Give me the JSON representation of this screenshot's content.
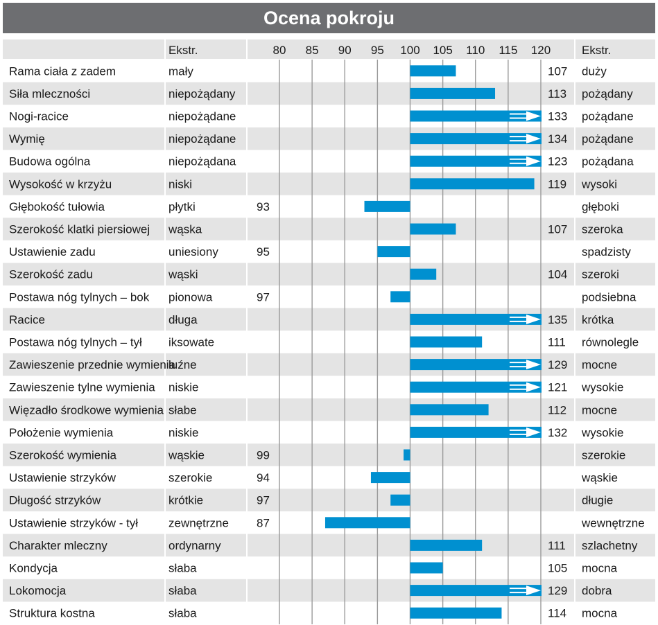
{
  "title": "Ocena pokroju",
  "header": {
    "ekstr_left": "Ekstr.",
    "ekstr_right": "Ekstr."
  },
  "colors": {
    "bar": "#0090d0",
    "header_bg": "#6d6e71",
    "row_alt": "#e4e4e4",
    "grid": "#9a9a9a"
  },
  "chart_data": {
    "type": "bar",
    "orientation": "horizontal",
    "baseline": 100,
    "xlim": [
      80,
      120
    ],
    "ticks": [
      80,
      85,
      90,
      95,
      100,
      105,
      110,
      115,
      120
    ],
    "rows": [
      {
        "trait": "Rama ciała z zadem",
        "left": "mały",
        "right": "duży",
        "value": 107
      },
      {
        "trait": "Siła mleczności",
        "left": "niepożądany",
        "right": "pożądany",
        "value": 113
      },
      {
        "trait": "Nogi-racice",
        "left": "niepożądane",
        "right": "pożądane",
        "value": 133
      },
      {
        "trait": "Wymię",
        "left": "niepożądane",
        "right": "pożądane",
        "value": 134
      },
      {
        "trait": "Budowa ogólna",
        "left": "niepożądana",
        "right": "pożądana",
        "value": 123
      },
      {
        "trait": "Wysokość w krzyżu",
        "left": "niski",
        "right": "wysoki",
        "value": 119
      },
      {
        "trait": "Głębokość tułowia",
        "left": "płytki",
        "right": "głęboki",
        "value": 93
      },
      {
        "trait": "Szerokość klatki piersiowej",
        "left": "wąska",
        "right": "szeroka",
        "value": 107
      },
      {
        "trait": "Ustawienie zadu",
        "left": "uniesiony",
        "right": "spadzisty",
        "value": 95
      },
      {
        "trait": "Szerokość zadu",
        "left": "wąski",
        "right": "szeroki",
        "value": 104
      },
      {
        "trait": "Postawa nóg tylnych –  bok",
        "left": "pionowa",
        "right": "podsiebna",
        "value": 97
      },
      {
        "trait": "Racice",
        "left": "długa",
        "right": "krótka",
        "value": 135
      },
      {
        "trait": "Postawa nóg tylnych –  tył",
        "left": "iksowate",
        "right": "równolegle",
        "value": 111
      },
      {
        "trait": "Zawieszenie przednie wymienia",
        "left": "luźne",
        "right": "mocne",
        "value": 129
      },
      {
        "trait": "Zawieszenie tylne wymienia",
        "left": "niskie",
        "right": "wysokie",
        "value": 121
      },
      {
        "trait": "Więzadło środkowe wymienia",
        "left": "słabe",
        "right": "mocne",
        "value": 112
      },
      {
        "trait": "Położenie wymienia",
        "left": "niskie",
        "right": "wysokie",
        "value": 132
      },
      {
        "trait": "Szerokość wymienia",
        "left": "wąskie",
        "right": "szerokie",
        "value": 99
      },
      {
        "trait": "Ustawienie strzyków",
        "left": "szerokie",
        "right": "wąskie",
        "value": 94
      },
      {
        "trait": "Długość strzyków",
        "left": "krótkie",
        "right": "długie",
        "value": 97
      },
      {
        "trait": "Ustawienie strzyków - tył",
        "left": "zewnętrzne",
        "right": "wewnętrzne",
        "value": 87
      },
      {
        "trait": "Charakter mleczny",
        "left": "ordynarny",
        "right": "szlachetny",
        "value": 111
      },
      {
        "trait": "Kondycja",
        "left": "słaba",
        "right": "mocna",
        "value": 105
      },
      {
        "trait": "Lokomocja",
        "left": "słaba",
        "right": "dobra",
        "value": 129
      },
      {
        "trait": "Struktura kostna",
        "left": "słaba",
        "right": "mocna",
        "value": 114
      }
    ]
  }
}
